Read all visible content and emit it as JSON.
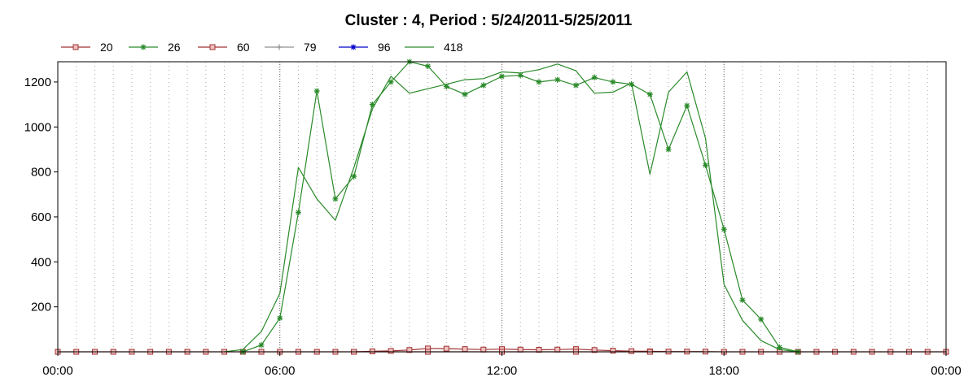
{
  "chart_data": {
    "type": "line",
    "title": "Cluster : 4, Period : 5/24/2011-5/25/2011",
    "xlabel": "",
    "ylabel": "",
    "x_range_hours": [
      0,
      24
    ],
    "ylim": [
      0,
      1290
    ],
    "x_tick_labels": [
      "00:00",
      "06:00",
      "12:00",
      "18:00",
      "00:00"
    ],
    "y_ticks": [
      200,
      400,
      600,
      800,
      1000,
      1200
    ],
    "x_minor_grid_step_minutes": 30,
    "grid": true,
    "legend_position": "top-left",
    "series": [
      {
        "name": "20",
        "color": "#a03030",
        "marker": "square",
        "x": [
          0,
          0.5,
          1,
          1.5,
          2,
          2.5,
          3,
          3.5,
          4,
          4.5,
          5,
          5.5,
          6,
          6.5,
          7,
          7.5,
          8,
          8.5,
          9,
          9.5,
          10,
          10.5,
          11,
          11.5,
          12,
          12.5,
          13,
          13.5,
          14,
          14.5,
          15,
          15.5,
          16,
          16.5,
          17,
          17.5,
          18,
          18.5,
          19,
          19.5,
          20,
          20.5,
          21,
          21.5,
          22,
          22.5,
          23,
          23.5,
          24
        ],
        "values": [
          0,
          0,
          0,
          0,
          0,
          0,
          0,
          0,
          0,
          0,
          0,
          0,
          0,
          0,
          0,
          0,
          0,
          2,
          4,
          8,
          15,
          14,
          12,
          10,
          12,
          10,
          9,
          10,
          12,
          8,
          5,
          3,
          2,
          1,
          1,
          1,
          0,
          0,
          0,
          0,
          0,
          0,
          0,
          0,
          0,
          0,
          0,
          0,
          0
        ]
      },
      {
        "name": "26",
        "color": "#2a8a2a",
        "marker": "asterisk",
        "x": [
          5,
          5.5,
          6,
          6.5,
          7,
          7.5,
          8,
          8.5,
          9,
          9.5,
          10,
          10.5,
          11,
          11.5,
          12,
          12.5,
          13,
          13.5,
          14,
          14.5,
          15,
          15.5,
          16,
          16.5,
          17,
          17.5,
          18,
          18.5,
          19,
          19.5,
          20
        ],
        "values": [
          0,
          30,
          150,
          620,
          1160,
          680,
          780,
          1100,
          1200,
          1290,
          1270,
          1180,
          1145,
          1185,
          1225,
          1230,
          1200,
          1210,
          1185,
          1220,
          1200,
          1190,
          1145,
          900,
          1095,
          830,
          545,
          230,
          145,
          20,
          0
        ]
      },
      {
        "name": "60",
        "color": "#a03030",
        "marker": "square",
        "x": [
          8,
          10,
          12,
          14,
          16
        ],
        "values": [
          0,
          0,
          0,
          0,
          0
        ]
      },
      {
        "name": "79",
        "color": "#909090",
        "marker": "plus",
        "x": [],
        "values": []
      },
      {
        "name": "96",
        "color": "#0000cc",
        "marker": "asterisk",
        "x": [],
        "values": []
      },
      {
        "name": "418",
        "color": "#2a8a2a",
        "marker": "none",
        "x": [
          4.5,
          5,
          5.5,
          6,
          6.5,
          7,
          7.5,
          8,
          8.5,
          9,
          9.5,
          10,
          10.5,
          11,
          11.5,
          12,
          12.5,
          13,
          13.5,
          14,
          14.5,
          15,
          15.5,
          16,
          16.5,
          17,
          17.5,
          18,
          18.5,
          19,
          19.5,
          20
        ],
        "values": [
          0,
          10,
          90,
          260,
          820,
          680,
          585,
          820,
          1080,
          1225,
          1150,
          1170,
          1190,
          1210,
          1215,
          1245,
          1240,
          1255,
          1280,
          1250,
          1150,
          1155,
          1195,
          790,
          1155,
          1245,
          950,
          300,
          140,
          50,
          10,
          0
        ]
      }
    ]
  }
}
